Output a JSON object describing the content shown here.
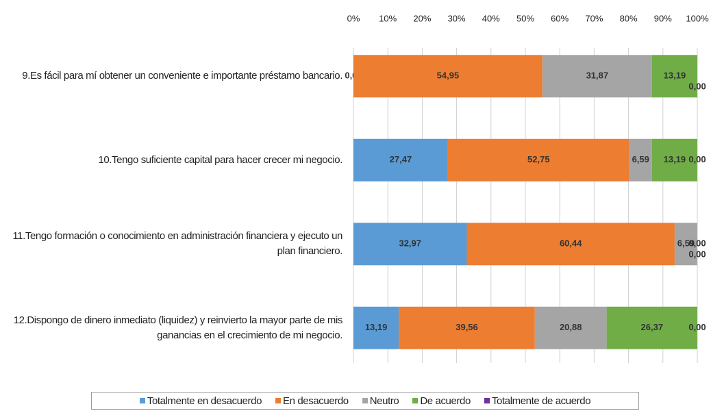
{
  "chart_data": {
    "type": "stacked-barh",
    "categories": [
      "9.Es fácil para mí obtener un conveniente e importante préstamo bancario.",
      "10.Tengo suficiente capital para hacer crecer mi negocio.",
      "11.Tengo formación o conocimiento en administración financiera y ejecuto un plan financiero.",
      "12.Dispongo de dinero inmediato (liquidez) y reinvierto la mayor parte de mis ganancias en el crecimiento de mi negocio."
    ],
    "series": [
      {
        "name": "Totalmente en desacuerdo",
        "color": "#5b9bd5",
        "values": [
          0,
          27.47,
          32.97,
          13.19
        ],
        "value_labels": [
          "0,00",
          "27,47",
          "32,97",
          "13,19"
        ]
      },
      {
        "name": "En desacuerdo",
        "color": "#ed7d31",
        "values": [
          54.95,
          52.75,
          60.44,
          39.56
        ],
        "value_labels": [
          "54,95",
          "52,75",
          "60,44",
          "39,56"
        ]
      },
      {
        "name": "Neutro",
        "color": "#a5a5a5",
        "values": [
          31.87,
          6.59,
          6.59,
          20.88
        ],
        "value_labels": [
          "31,87",
          "6,59",
          "6,59",
          "20,88"
        ]
      },
      {
        "name": "De acuerdo",
        "color": "#70ad47",
        "values": [
          13.19,
          13.19,
          0,
          26.37
        ],
        "value_labels": [
          "13,19",
          "13,19",
          "0,00",
          "26,37"
        ]
      },
      {
        "name": "Totalmente de acuerdo",
        "color": "#7030a0",
        "values": [
          0,
          0,
          0,
          0
        ],
        "value_labels": [
          "0,00",
          "0,00",
          "0,00",
          "0,00"
        ]
      }
    ],
    "xlim": [
      0,
      100
    ],
    "xticks": [
      {
        "value": 0,
        "label": "0%"
      },
      {
        "value": 10,
        "label": "10%"
      },
      {
        "value": 20,
        "label": "20%"
      },
      {
        "value": 30,
        "label": "30%"
      },
      {
        "value": 40,
        "label": "40%"
      },
      {
        "value": 50,
        "label": "50%"
      },
      {
        "value": 60,
        "label": "60%"
      },
      {
        "value": 70,
        "label": "70%"
      },
      {
        "value": 80,
        "label": "80%"
      },
      {
        "value": 90,
        "label": "90%"
      },
      {
        "value": 100,
        "label": "100%"
      }
    ],
    "grid": true,
    "legend": "bottom"
  }
}
